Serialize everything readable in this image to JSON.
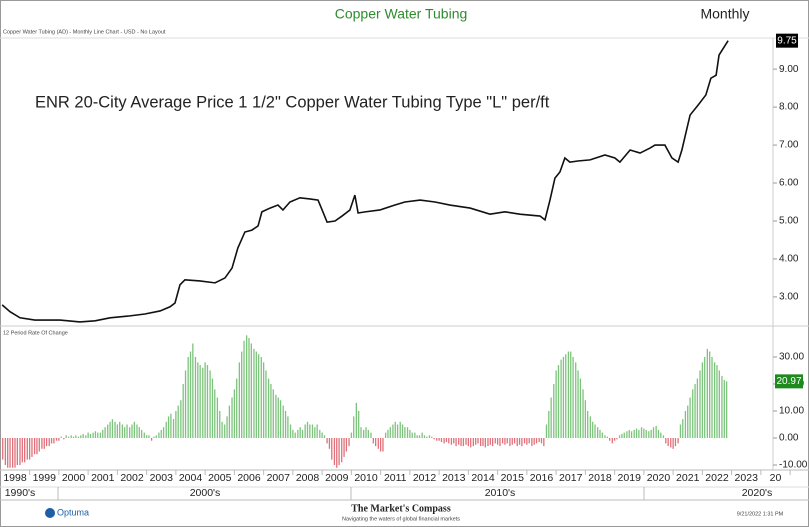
{
  "header": {
    "title": "Copper Water Tubing",
    "frequency": "Monthly",
    "subtitle": "Copper Water Tubing (AD) - Monthly Line Chart - USD - No Layout"
  },
  "footer": {
    "logo": "Optuma",
    "brand": "The Market's Compass",
    "tagline": "Navigating the waters of global financial markets",
    "timestamp": "9/21/2022 1:31 PM"
  },
  "chart_data": [
    {
      "type": "line",
      "annotation": "ENR 20-City Average Price 1 1/2\" Copper Water Tubing Type \"L\" per/ft",
      "color": "#111111",
      "xlim": [
        1997.487,
        2023.915
      ],
      "ylim": [
        2.26,
        9.82
      ],
      "yticks": [
        {
          "value": 3,
          "label": "3.00"
        },
        {
          "value": 4,
          "label": "4.00"
        },
        {
          "value": 5,
          "label": "5.00"
        },
        {
          "value": 6,
          "label": "6.00"
        },
        {
          "value": 7,
          "label": "7.00"
        },
        {
          "value": 8,
          "label": "8.00"
        },
        {
          "value": 9,
          "label": "9.00"
        }
      ],
      "x": [
        1997.56,
        1997.83,
        1998.17,
        1998.68,
        1999.54,
        2000.22,
        2000.74,
        2001.25,
        2001.93,
        2002.44,
        2002.96,
        2003.3,
        2003.47,
        2003.64,
        2003.81,
        2004.32,
        2004.84,
        2005.18,
        2005.42,
        2005.62,
        2005.86,
        2006.1,
        2006.31,
        2006.44,
        2006.72,
        2006.99,
        2007.16,
        2007.4,
        2007.74,
        2008.08,
        2008.36,
        2008.5,
        2008.67,
        2008.94,
        2009.18,
        2009.45,
        2009.62,
        2009.73,
        2009.97,
        2010.48,
        2010.99,
        2011.33,
        2011.85,
        2012.36,
        2012.87,
        2013.56,
        2014.24,
        2014.75,
        2015.26,
        2015.95,
        2016.12,
        2016.29,
        2016.46,
        2016.63,
        2016.8,
        2016.97,
        2017.24,
        2017.66,
        2018.17,
        2018.51,
        2018.68,
        2019.03,
        2019.37,
        2019.71,
        2019.88,
        2020.22,
        2020.46,
        2020.67,
        2020.8,
        2021.08,
        2021.35,
        2021.62,
        2021.79,
        2021.97,
        2022.07,
        2022.38
      ],
      "values": [
        2.79,
        2.61,
        2.45,
        2.39,
        2.39,
        2.34,
        2.37,
        2.45,
        2.5,
        2.55,
        2.63,
        2.74,
        2.84,
        3.32,
        3.45,
        3.42,
        3.37,
        3.5,
        3.76,
        4.29,
        4.71,
        4.76,
        4.87,
        5.24,
        5.34,
        5.42,
        5.29,
        5.5,
        5.61,
        5.58,
        5.55,
        5.29,
        4.97,
        5,
        5.13,
        5.29,
        5.68,
        5.21,
        5.24,
        5.29,
        5.42,
        5.5,
        5.55,
        5.5,
        5.42,
        5.34,
        5.18,
        5.24,
        5.18,
        5.13,
        5.03,
        5.55,
        6.13,
        6.29,
        6.66,
        6.55,
        6.58,
        6.61,
        6.74,
        6.66,
        6.55,
        6.87,
        6.79,
        6.92,
        7,
        7,
        6.66,
        6.55,
        6.87,
        7.79,
        8.05,
        8.32,
        8.76,
        8.84,
        9.37,
        9.75
      ]
    },
    {
      "type": "bar",
      "label": "12 Period Rate Of Change",
      "positive_color": "#7cc47c",
      "negative_color": "#e0707a",
      "last_color": "#1e8a1e",
      "xlim": [
        1997.487,
        2023.915
      ],
      "ylim": [
        -11.85,
        41.1
      ],
      "yticks": [
        {
          "value": 30,
          "label": "30.00"
        },
        {
          "value": 20,
          "label": "20.00"
        },
        {
          "value": 10,
          "label": "10.00"
        },
        {
          "value": 0,
          "label": "0.00"
        },
        {
          "value": -10,
          "label": "-10.00"
        }
      ],
      "xticks": [
        1998,
        1999,
        2000,
        2001,
        2002,
        2003,
        2004,
        2005,
        2006,
        2007,
        2008,
        2009,
        2010,
        2011,
        2012,
        2013,
        2014,
        2015,
        2016,
        2017,
        2018,
        2019,
        2020,
        2021,
        2022,
        2023,
        {
          "value": 2024,
          "label": "20"
        }
      ],
      "x_group_labels": [
        "1990's",
        "2000's",
        "2010's",
        "2020's"
      ],
      "x": [
        1997.58,
        1997.67,
        1997.75,
        1997.83,
        1997.92,
        1998,
        1998.08,
        1998.17,
        1998.25,
        1998.33,
        1998.42,
        1998.5,
        1998.58,
        1998.67,
        1998.75,
        1998.83,
        1998.92,
        1999,
        1999.08,
        1999.17,
        1999.25,
        1999.33,
        1999.42,
        1999.5,
        1999.58,
        1999.67,
        1999.75,
        1999.83,
        1999.92,
        2000,
        2000.08,
        2000.17,
        2000.25,
        2000.33,
        2000.42,
        2000.5,
        2000.58,
        2000.67,
        2000.75,
        2000.83,
        2000.92,
        2001,
        2001.08,
        2001.17,
        2001.25,
        2001.33,
        2001.42,
        2001.5,
        2001.58,
        2001.67,
        2001.75,
        2001.83,
        2001.92,
        2002,
        2002.08,
        2002.17,
        2002.25,
        2002.33,
        2002.42,
        2002.5,
        2002.58,
        2002.67,
        2002.75,
        2002.83,
        2002.92,
        2003,
        2003.08,
        2003.17,
        2003.25,
        2003.33,
        2003.42,
        2003.5,
        2003.58,
        2003.67,
        2003.75,
        2003.83,
        2003.92,
        2004,
        2004.08,
        2004.17,
        2004.25,
        2004.33,
        2004.42,
        2004.5,
        2004.58,
        2004.67,
        2004.75,
        2004.83,
        2004.92,
        2005,
        2005.08,
        2005.17,
        2005.25,
        2005.33,
        2005.42,
        2005.5,
        2005.58,
        2005.67,
        2005.75,
        2005.83,
        2005.92,
        2006,
        2006.08,
        2006.17,
        2006.25,
        2006.33,
        2006.42,
        2006.5,
        2006.58,
        2006.67,
        2006.75,
        2006.83,
        2006.92,
        2007,
        2007.08,
        2007.17,
        2007.25,
        2007.33,
        2007.42,
        2007.5,
        2007.58,
        2007.67,
        2007.75,
        2007.83,
        2007.92,
        2008,
        2008.08,
        2008.17,
        2008.25,
        2008.33,
        2008.42,
        2008.5,
        2008.58,
        2008.67,
        2008.75,
        2008.83,
        2008.92,
        2009,
        2009.08,
        2009.17,
        2009.25,
        2009.33,
        2009.42,
        2009.5,
        2009.58,
        2009.67,
        2009.75,
        2009.83,
        2009.92,
        2010,
        2010.08,
        2010.17,
        2010.25,
        2010.33,
        2010.42,
        2010.5,
        2010.58,
        2010.67,
        2010.75,
        2010.83,
        2010.92,
        2011,
        2011.08,
        2011.17,
        2011.25,
        2011.33,
        2011.42,
        2011.5,
        2011.58,
        2011.67,
        2011.75,
        2011.83,
        2011.92,
        2012,
        2012.08,
        2012.17,
        2012.25,
        2012.33,
        2012.42,
        2012.5,
        2012.58,
        2012.67,
        2012.75,
        2012.83,
        2012.92,
        2013,
        2013.08,
        2013.17,
        2013.25,
        2013.33,
        2013.42,
        2013.5,
        2013.58,
        2013.67,
        2013.75,
        2013.83,
        2013.92,
        2014,
        2014.08,
        2014.17,
        2014.25,
        2014.33,
        2014.42,
        2014.5,
        2014.58,
        2014.67,
        2014.75,
        2014.83,
        2014.92,
        2015,
        2015.08,
        2015.17,
        2015.25,
        2015.33,
        2015.42,
        2015.5,
        2015.58,
        2015.67,
        2015.75,
        2015.83,
        2015.92,
        2016,
        2016.08,
        2016.17,
        2016.25,
        2016.33,
        2016.42,
        2016.5,
        2016.58,
        2016.67,
        2016.75,
        2016.83,
        2016.92,
        2017,
        2017.08,
        2017.17,
        2017.25,
        2017.33,
        2017.42,
        2017.5,
        2017.58,
        2017.67,
        2017.75,
        2017.83,
        2017.92,
        2018,
        2018.08,
        2018.17,
        2018.25,
        2018.33,
        2018.42,
        2018.5,
        2018.58,
        2018.67,
        2018.75,
        2018.83,
        2018.92,
        2019,
        2019.08,
        2019.17,
        2019.25,
        2019.33,
        2019.42,
        2019.5,
        2019.58,
        2019.67,
        2019.75,
        2019.83,
        2019.92,
        2020,
        2020.08,
        2020.17,
        2020.25,
        2020.33,
        2020.42,
        2020.5,
        2020.58,
        2020.67,
        2020.75,
        2020.83,
        2020.92,
        2021,
        2021.08,
        2021.17,
        2021.25,
        2021.33,
        2021.42,
        2021.5,
        2021.58,
        2021.67,
        2021.75,
        2021.83,
        2021.92,
        2022,
        2022.08,
        2022.17,
        2022.25,
        2022.33
      ],
      "values": [
        -8,
        -10,
        -11,
        -11,
        -11,
        -11,
        -10,
        -10,
        -9,
        -9,
        -8,
        -8,
        -7,
        -6,
        -6,
        -5,
        -4,
        -4,
        -3,
        -3,
        -2,
        -2,
        -1,
        -1,
        0.5,
        -0.5,
        1,
        0.5,
        1,
        0.5,
        1,
        0.5,
        1,
        1.5,
        1,
        2,
        1.5,
        2,
        2.5,
        2,
        2,
        3,
        4,
        5,
        6,
        7,
        6,
        5,
        6,
        5,
        4,
        5,
        4,
        5,
        6,
        5,
        4,
        3,
        2,
        1,
        1,
        -1,
        0.5,
        1,
        2,
        3,
        4,
        6,
        8,
        9,
        7,
        10,
        12,
        14,
        20,
        25,
        30,
        32,
        35,
        30,
        28,
        27,
        26,
        28,
        27,
        25,
        22,
        18,
        15,
        10,
        6,
        5,
        8,
        12,
        15,
        18,
        22,
        28,
        32,
        36,
        38,
        37,
        35,
        33,
        32,
        31,
        30,
        28,
        25,
        22,
        20,
        18,
        16,
        15,
        14,
        12,
        10,
        8,
        5,
        3,
        2,
        3,
        4,
        3,
        5,
        6,
        5,
        5,
        4,
        5,
        3,
        2,
        1,
        -2,
        -4,
        -8,
        -10,
        -11,
        -10,
        -9,
        -7,
        -5,
        -3,
        2,
        8,
        13,
        10,
        4,
        3,
        4,
        3,
        2,
        -2,
        -3,
        -4,
        -5,
        -5,
        2,
        3,
        4,
        5,
        6,
        5,
        6,
        5,
        4,
        4,
        3,
        2,
        2,
        1,
        1,
        2,
        1,
        0.5,
        1,
        0.5,
        -0.5,
        -1,
        -1,
        -1.5,
        -2,
        -1.5,
        -2,
        -2.5,
        -2,
        -3,
        -2.5,
        -3,
        -3,
        -2.5,
        -3,
        -3.5,
        -3,
        -2.5,
        -2,
        -3,
        -3,
        -3.5,
        -3,
        -2.5,
        -3,
        -2,
        -2.5,
        -3,
        -2,
        -2.5,
        -2,
        -3,
        -2.5,
        -2,
        -3,
        -2.5,
        -3,
        -2,
        -2.5,
        -2,
        -3,
        -2.5,
        -2,
        -1.5,
        -2,
        -3,
        5,
        10,
        15,
        20,
        25,
        27,
        29,
        30,
        31,
        32,
        32,
        30,
        28,
        25,
        22,
        18,
        14,
        10,
        8,
        6,
        5,
        4,
        3,
        2,
        1,
        0.5,
        -1,
        -2,
        -1,
        -0.5,
        1,
        1.5,
        2,
        2.5,
        3,
        2.5,
        3,
        3.5,
        3,
        4,
        3.5,
        3,
        2.5,
        3,
        4,
        4.5,
        3,
        2,
        1,
        -2,
        -3,
        -3.5,
        -4,
        -3,
        -2,
        5,
        7,
        10,
        12,
        15,
        18,
        20,
        22,
        25,
        28,
        30,
        33,
        32,
        30,
        28,
        27,
        25,
        23,
        21.5,
        20.97
      ]
    }
  ]
}
